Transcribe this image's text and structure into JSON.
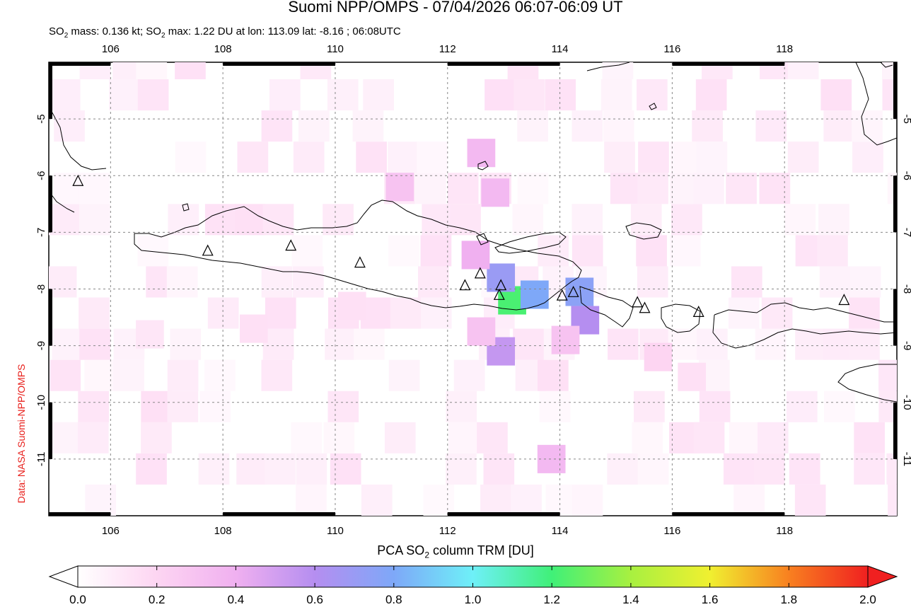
{
  "header": {
    "title": "Suomi NPP/OMPS - 07/04/2026 06:07-06:09 UT",
    "subtitle_parts": [
      "SO",
      "2",
      " mass: 0.136 kt; SO",
      "2",
      " max: 1.22 DU at lon: 113.09 lat: -8.16 ; 06:08UTC"
    ]
  },
  "credit": "Data: NASA Suomi-NPP/OMPS",
  "map": {
    "lon_range": [
      104.9,
      120.0
    ],
    "lat_range": [
      -12.0,
      -4.0
    ],
    "lon_ticks": [
      "106",
      "108",
      "110",
      "112",
      "114",
      "116",
      "118"
    ],
    "lat_ticks": [
      "-5",
      "-6",
      "-7",
      "-8",
      "-9",
      "-10",
      "-11"
    ],
    "volcanoes": [
      {
        "lon": 105.42,
        "lat": -6.1
      },
      {
        "lon": 107.73,
        "lat": -7.33
      },
      {
        "lon": 109.21,
        "lat": -7.24
      },
      {
        "lon": 110.44,
        "lat": -7.54
      },
      {
        "lon": 112.31,
        "lat": -7.94
      },
      {
        "lon": 112.58,
        "lat": -7.73
      },
      {
        "lon": 112.95,
        "lat": -7.94
      },
      {
        "lon": 112.92,
        "lat": -8.11
      },
      {
        "lon": 114.04,
        "lat": -8.12
      },
      {
        "lon": 114.24,
        "lat": -8.06
      },
      {
        "lon": 115.38,
        "lat": -8.24
      },
      {
        "lon": 115.51,
        "lat": -8.34
      },
      {
        "lon": 116.47,
        "lat": -8.41
      },
      {
        "lon": 119.06,
        "lat": -8.2
      }
    ],
    "so2_cells": [
      {
        "lon": 113.15,
        "lat": -8.2,
        "du": 1.22
      },
      {
        "lon": 113.55,
        "lat": -8.1,
        "du": 0.8
      },
      {
        "lon": 112.95,
        "lat": -7.8,
        "du": 0.7
      },
      {
        "lon": 114.35,
        "lat": -8.05,
        "du": 0.75
      },
      {
        "lon": 114.45,
        "lat": -8.55,
        "du": 0.6
      },
      {
        "lon": 112.95,
        "lat": -9.1,
        "du": 0.55
      },
      {
        "lon": 112.5,
        "lat": -7.4,
        "du": 0.4
      },
      {
        "lon": 112.85,
        "lat": -6.3,
        "du": 0.35
      },
      {
        "lon": 112.6,
        "lat": -5.6,
        "du": 0.35
      },
      {
        "lon": 111.15,
        "lat": -6.2,
        "du": 0.3
      },
      {
        "lon": 113.85,
        "lat": -11.0,
        "du": 0.35
      },
      {
        "lon": 112.6,
        "lat": -8.75,
        "du": 0.3
      },
      {
        "lon": 114.1,
        "lat": -8.9,
        "du": 0.3
      },
      {
        "lon": 115.75,
        "lat": -9.2,
        "du": 0.2
      },
      {
        "lon": 116.35,
        "lat": -9.55,
        "du": 0.15
      },
      {
        "lon": 108.55,
        "lat": -8.7,
        "du": 0.15
      },
      {
        "lon": 110.3,
        "lat": -8.3,
        "du": 0.15
      },
      {
        "lon": 106.7,
        "lat": -8.8,
        "du": 0.12
      }
    ]
  },
  "colorbar": {
    "title_parts": [
      "PCA SO",
      "2",
      " column TRM [DU]"
    ],
    "min": 0.0,
    "max": 2.0,
    "ticks": [
      "0.0",
      "0.2",
      "0.4",
      "0.6",
      "0.8",
      "1.0",
      "1.2",
      "1.4",
      "1.6",
      "1.8",
      "2.0"
    ],
    "stops": [
      "#ffffff",
      "#fdd5f2",
      "#f0b0f0",
      "#b58ef0",
      "#7ea8f8",
      "#6ef0f8",
      "#40f078",
      "#a8f040",
      "#f0f030",
      "#f88020",
      "#f02020"
    ]
  }
}
